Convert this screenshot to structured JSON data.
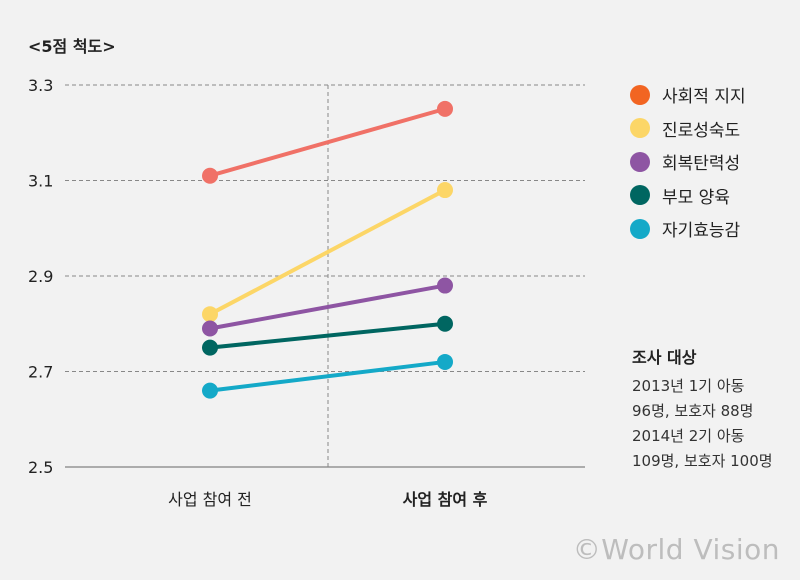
{
  "chart_data": {
    "type": "line",
    "title": "<5점 척도>",
    "categories": [
      "사업 참여 전",
      "사업 참여 후"
    ],
    "ylim": [
      2.5,
      3.3
    ],
    "yticks": [
      "3.3",
      "3.1",
      "2.9",
      "2.7",
      "2.5"
    ],
    "grid": true,
    "legend_position": "right",
    "series": [
      {
        "name": "사회적 지지",
        "values": [
          3.11,
          3.25
        ],
        "color": "#f26522",
        "line_color": "#f07167"
      },
      {
        "name": "진로성숙도",
        "values": [
          2.82,
          3.08
        ],
        "color": "#fcd667",
        "line_color": "#fcd667"
      },
      {
        "name": "회복탄력성",
        "values": [
          2.79,
          2.88
        ],
        "color": "#8e55a3",
        "line_color": "#8e55a3"
      },
      {
        "name": "부모 양육",
        "values": [
          2.75,
          2.8
        ],
        "color": "#006661",
        "line_color": "#006661"
      },
      {
        "name": "자기효능감",
        "values": [
          2.66,
          2.72
        ],
        "color": "#14a9c8",
        "line_color": "#14a9c8"
      }
    ]
  },
  "note": {
    "title": "조사 대상",
    "lines": [
      "2013년 1기 아동",
      "96명, 보호자 88명",
      "2014년 2기 아동",
      "109명, 보호자 100명"
    ]
  },
  "watermark": "©World Vision"
}
